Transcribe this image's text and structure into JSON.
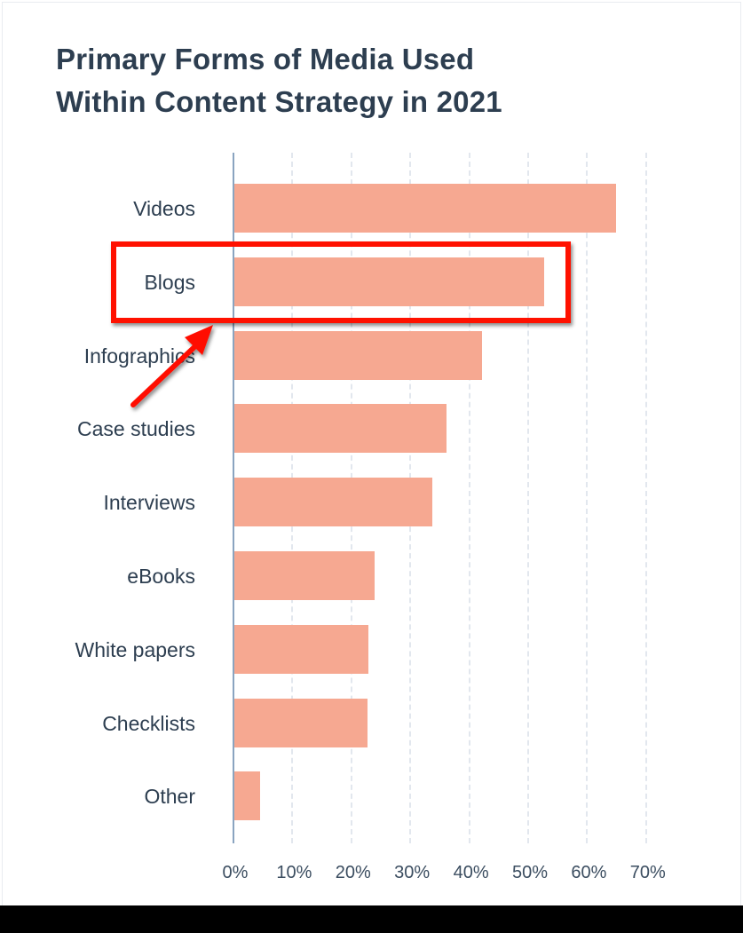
{
  "chart_data": {
    "type": "bar",
    "orientation": "horizontal",
    "title": "Primary Forms of Media Used Within Content Strategy in 2021",
    "title_lines": [
      "Primary Forms of Media Used",
      "Within Content Strategy in 2021"
    ],
    "categories": [
      "Videos",
      "Blogs",
      "Infographics",
      "Case studies",
      "Interviews",
      "eBooks",
      "White papers",
      "Checklists",
      "Other"
    ],
    "values": [
      64.7,
      52.6,
      42.0,
      36.0,
      33.6,
      23.8,
      22.7,
      22.6,
      4.4
    ],
    "value_unit": "%",
    "xlabel": "",
    "ylabel": "",
    "xlim": [
      0,
      70
    ],
    "x_ticks": [
      "0%",
      "10%",
      "20%",
      "30%",
      "40%",
      "50%",
      "60%",
      "70%"
    ],
    "grid": "vertical dashed",
    "legend": "none",
    "bar_color": "#f6a891",
    "annotations": [
      {
        "type": "highlight-box",
        "target": "Blogs",
        "color": "#ff1100"
      },
      {
        "type": "arrow",
        "pointing_to": "Blogs",
        "color": "#ff1100"
      }
    ]
  },
  "colors": {
    "title": "#2d3e50",
    "axis": "#8aa4c0",
    "grid": "#e2e7ee",
    "bar": "#f6a891",
    "annotation": "#ff1100"
  }
}
